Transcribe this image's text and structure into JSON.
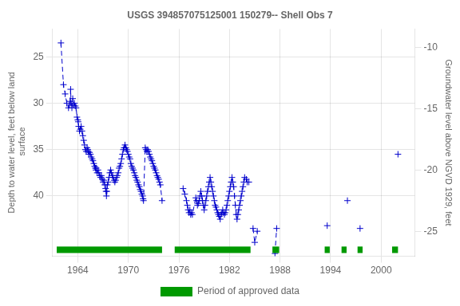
{
  "chart_data": {
    "type": "line",
    "title": "USGS 394857075125001 150279-- Shell Obs 7",
    "ylabel": "Depth to water level, feet below land\n surface",
    "y2label": "Groundwater level above NGVD 1929, feet",
    "xlim": [
      1961.0,
      2004.0
    ],
    "xticks": [
      1964,
      1970,
      1976,
      1982,
      1988,
      1994,
      2000
    ],
    "ylim": [
      46.5,
      22.0
    ],
    "yticks": [
      25,
      30,
      35,
      40
    ],
    "y2lim": [
      -27.0,
      -8.5
    ],
    "y2ticks": [
      -10,
      -15,
      -20,
      -25
    ],
    "grid": true,
    "legend": "bottom",
    "color": "#0000CC",
    "marker": "+",
    "line_style": "dashed",
    "series": [
      {
        "x": [
          1962.0,
          1962.3,
          1962.5,
          1962.7,
          1962.9,
          1963.0,
          1963.1,
          1963.15,
          1963.2,
          1963.3,
          1963.4,
          1963.5,
          1963.6,
          1963.7,
          1963.8,
          1963.9,
          1964.0,
          1964.05,
          1964.1,
          1964.2,
          1964.3,
          1964.4,
          1964.5,
          1964.6,
          1964.7,
          1964.8,
          1964.9,
          1965.0,
          1965.1,
          1965.2,
          1965.25,
          1965.3,
          1965.4,
          1965.5,
          1965.6,
          1965.7,
          1965.8,
          1965.9,
          1966.0,
          1966.1,
          1966.15,
          1966.2,
          1966.3,
          1966.4,
          1966.5,
          1966.6,
          1966.7,
          1966.8,
          1966.9,
          1967.0,
          1967.1,
          1967.2,
          1967.3,
          1967.35,
          1967.4,
          1967.45,
          1967.5,
          1967.6,
          1967.7,
          1967.8,
          1967.9,
          1968.0,
          1968.1,
          1968.2,
          1968.3,
          1968.4,
          1968.5,
          1968.6,
          1968.7,
          1968.8,
          1968.9,
          1969.0,
          1969.1,
          1969.2,
          1969.3,
          1969.4,
          1969.5,
          1969.6,
          1969.7,
          1969.8,
          1969.9,
          1970.0,
          1970.1,
          1970.2,
          1970.3,
          1970.4,
          1970.5,
          1970.6,
          1970.7,
          1970.8,
          1970.9,
          1971.0,
          1971.1,
          1971.2,
          1971.3,
          1971.4,
          1971.5,
          1971.6,
          1971.7,
          1971.75,
          1971.8,
          1972.0,
          1972.1,
          1972.2,
          1972.3,
          1972.4,
          1972.5,
          1972.6,
          1972.7,
          1972.8,
          1972.9,
          1973.0,
          1973.1,
          1973.2,
          1973.3,
          1973.4,
          1973.5,
          1973.6,
          1973.7,
          1973.8,
          1974.0
        ],
        "values": [
          23.5,
          28.0,
          29.0,
          30.0,
          30.5,
          30.2,
          29.8,
          28.5,
          30.0,
          30.5,
          29.5,
          30.2,
          30.0,
          30.3,
          30.5,
          31.5,
          31.8,
          32.0,
          32.5,
          33.0,
          32.8,
          32.5,
          33.0,
          33.5,
          34.0,
          34.5,
          35.0,
          35.2,
          34.8,
          35.0,
          35.2,
          35.5,
          35.3,
          35.5,
          35.8,
          36.0,
          36.2,
          36.5,
          36.8,
          37.0,
          37.2,
          37.0,
          37.5,
          37.2,
          37.5,
          37.8,
          38.0,
          37.8,
          38.2,
          38.5,
          38.3,
          38.8,
          39.2,
          39.5,
          40.0,
          39.5,
          38.8,
          38.5,
          38.0,
          37.5,
          37.2,
          37.5,
          37.8,
          38.0,
          38.3,
          38.5,
          38.3,
          38.0,
          37.8,
          37.5,
          37.0,
          36.8,
          36.5,
          36.0,
          35.5,
          35.0,
          34.8,
          34.5,
          34.8,
          35.0,
          35.2,
          35.5,
          35.8,
          36.0,
          36.5,
          36.8,
          37.0,
          37.2,
          37.5,
          37.8,
          38.0,
          38.3,
          38.5,
          38.8,
          39.0,
          39.3,
          39.5,
          39.8,
          40.0,
          40.3,
          40.5,
          34.8,
          35.0,
          35.2,
          35.0,
          35.2,
          35.5,
          35.8,
          36.0,
          36.2,
          36.5,
          36.8,
          37.0,
          37.2,
          37.5,
          37.8,
          38.0,
          38.2,
          38.5,
          38.8,
          40.5
        ]
      },
      {
        "x": [
          1976.5,
          1976.7,
          1976.9,
          1977.0,
          1977.1,
          1977.2,
          1977.3,
          1977.4,
          1977.5,
          1977.6,
          1978.0,
          1978.1,
          1978.2,
          1978.3,
          1978.4,
          1978.5,
          1978.6,
          1978.7,
          1978.8,
          1978.9,
          1979.0,
          1979.1,
          1979.2,
          1979.3,
          1979.4,
          1979.5,
          1979.6,
          1979.7,
          1979.8,
          1979.9,
          1980.0,
          1980.1,
          1980.2,
          1980.3,
          1980.4,
          1980.5,
          1980.6,
          1980.7,
          1980.8,
          1980.9,
          1981.0,
          1981.1,
          1981.2,
          1981.3,
          1981.4,
          1981.5,
          1981.6,
          1981.7,
          1981.8,
          1981.9,
          1982.0,
          1982.1,
          1982.2,
          1982.3,
          1982.4,
          1982.5,
          1982.6,
          1982.7,
          1982.8,
          1982.9,
          1983.0,
          1983.1,
          1983.2,
          1983.3,
          1983.4,
          1983.5,
          1983.6,
          1983.7,
          1983.8,
          1984.0,
          1984.1,
          1984.3
        ],
        "values": [
          39.2,
          39.8,
          40.5,
          41.0,
          41.5,
          41.8,
          41.5,
          42.0,
          41.8,
          42.0,
          40.2,
          40.5,
          41.0,
          40.8,
          40.5,
          40.0,
          39.5,
          40.0,
          40.5,
          41.0,
          41.5,
          41.0,
          40.5,
          40.0,
          39.5,
          39.0,
          38.5,
          38.0,
          38.5,
          39.0,
          39.5,
          40.0,
          40.5,
          41.0,
          41.2,
          41.5,
          41.8,
          42.0,
          42.2,
          42.5,
          42.0,
          41.8,
          41.5,
          41.8,
          42.0,
          41.8,
          41.5,
          41.0,
          40.5,
          40.0,
          39.5,
          39.0,
          38.5,
          38.0,
          38.5,
          39.0,
          40.0,
          41.0,
          42.0,
          42.5,
          42.0,
          41.5,
          41.0,
          40.5,
          40.0,
          39.5,
          39.0,
          38.5,
          38.0,
          38.2,
          38.5,
          38.5
        ]
      },
      {
        "x": [
          1984.8,
          1985.0,
          1985.3
        ],
        "values": [
          43.5,
          45.0,
          43.8
        ]
      },
      {
        "x": [
          1987.4,
          1987.6
        ],
        "values": [
          46.2,
          43.5
        ]
      },
      {
        "x": [
          1993.6
        ],
        "values": [
          43.2
        ]
      },
      {
        "x": [
          1996.0
        ],
        "values": [
          40.5
        ]
      },
      {
        "x": [
          1997.5
        ],
        "values": [
          43.5
        ]
      },
      {
        "x": [
          2002.0
        ],
        "values": [
          35.5
        ]
      }
    ],
    "approved": {
      "name": "Period of approved data",
      "color": "#009900",
      "y": 45.8,
      "height": 0.7,
      "ranges": [
        [
          1961.5,
          1974.0
        ],
        [
          1975.5,
          1984.5
        ],
        [
          1987.1,
          1987.9
        ],
        [
          1993.3,
          1993.9
        ],
        [
          1995.3,
          1995.9
        ],
        [
          1997.2,
          1997.8
        ],
        [
          2001.3,
          2002.0
        ]
      ]
    }
  }
}
